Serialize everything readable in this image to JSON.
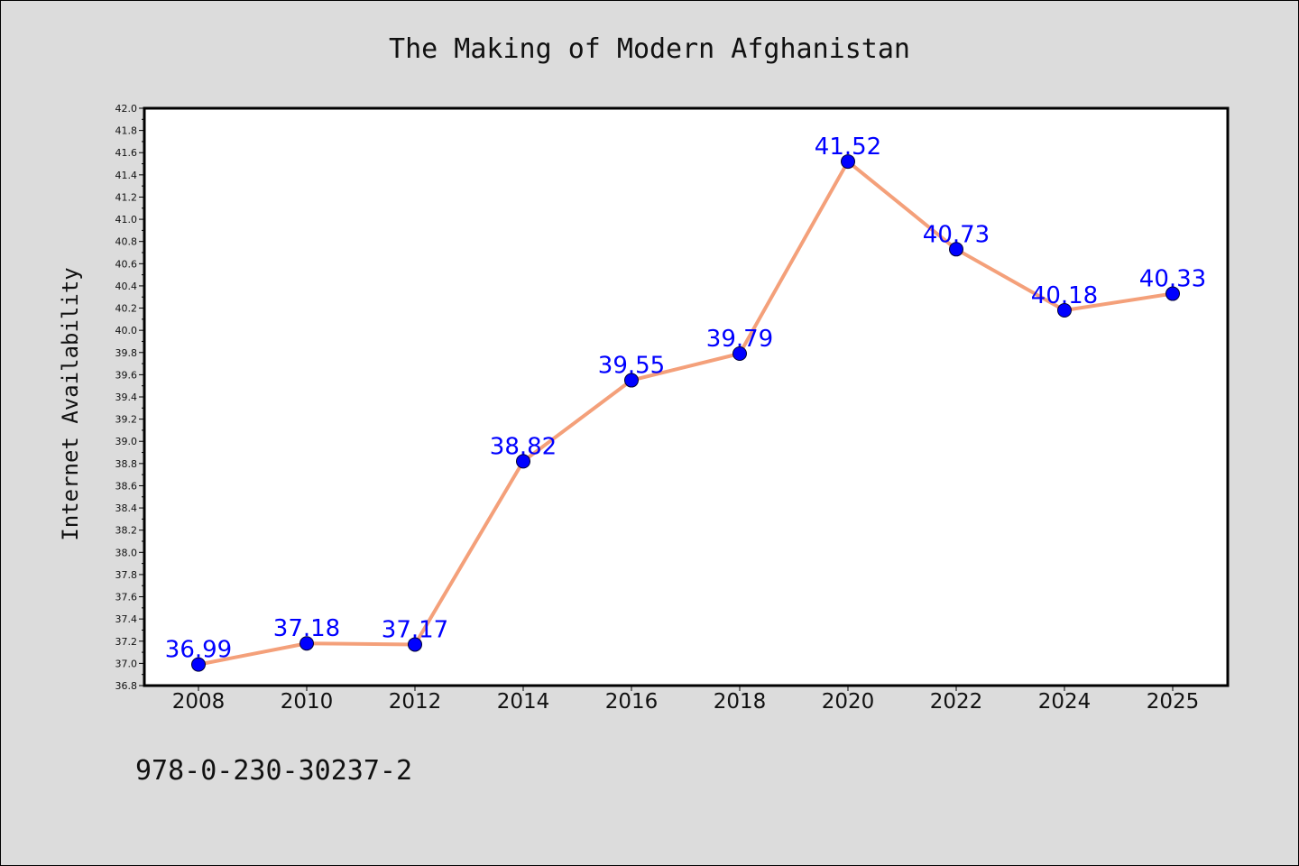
{
  "chart_data": {
    "type": "line",
    "title": "The Making of Modern Afghanistan",
    "xlabel": "",
    "ylabel": "Internet Availability",
    "categories": [
      "2008",
      "2010",
      "2012",
      "2014",
      "2016",
      "2018",
      "2020",
      "2022",
      "2024",
      "2025"
    ],
    "values": [
      36.99,
      37.18,
      37.17,
      38.82,
      39.55,
      39.79,
      41.52,
      40.73,
      40.18,
      40.33
    ],
    "data_labels": [
      "36.99",
      "37.18",
      "37.17",
      "38.82",
      "39.55",
      "39.79",
      "41.52",
      "40.73",
      "40.18",
      "40.33"
    ],
    "ylim": [
      36.8,
      42.0
    ],
    "yticks": [
      "36.8",
      "37.0",
      "37.2",
      "37.4",
      "37.6",
      "37.8",
      "38.0",
      "38.2",
      "38.4",
      "38.6",
      "38.8",
      "39.0",
      "39.2",
      "39.4",
      "39.6",
      "39.8",
      "40.0",
      "40.2",
      "40.4",
      "40.6",
      "40.8",
      "41.0",
      "41.2",
      "41.4",
      "41.6",
      "41.8",
      "42.0"
    ],
    "grid": false,
    "legend": "none",
    "line_color": "#f4a07a",
    "marker_color": "#0000ff",
    "label_color": "#0000ff",
    "background_color": "#dcdcdc",
    "plot_background": "#ffffff"
  },
  "footer": {
    "isbn": "978-0-230-30237-2"
  }
}
